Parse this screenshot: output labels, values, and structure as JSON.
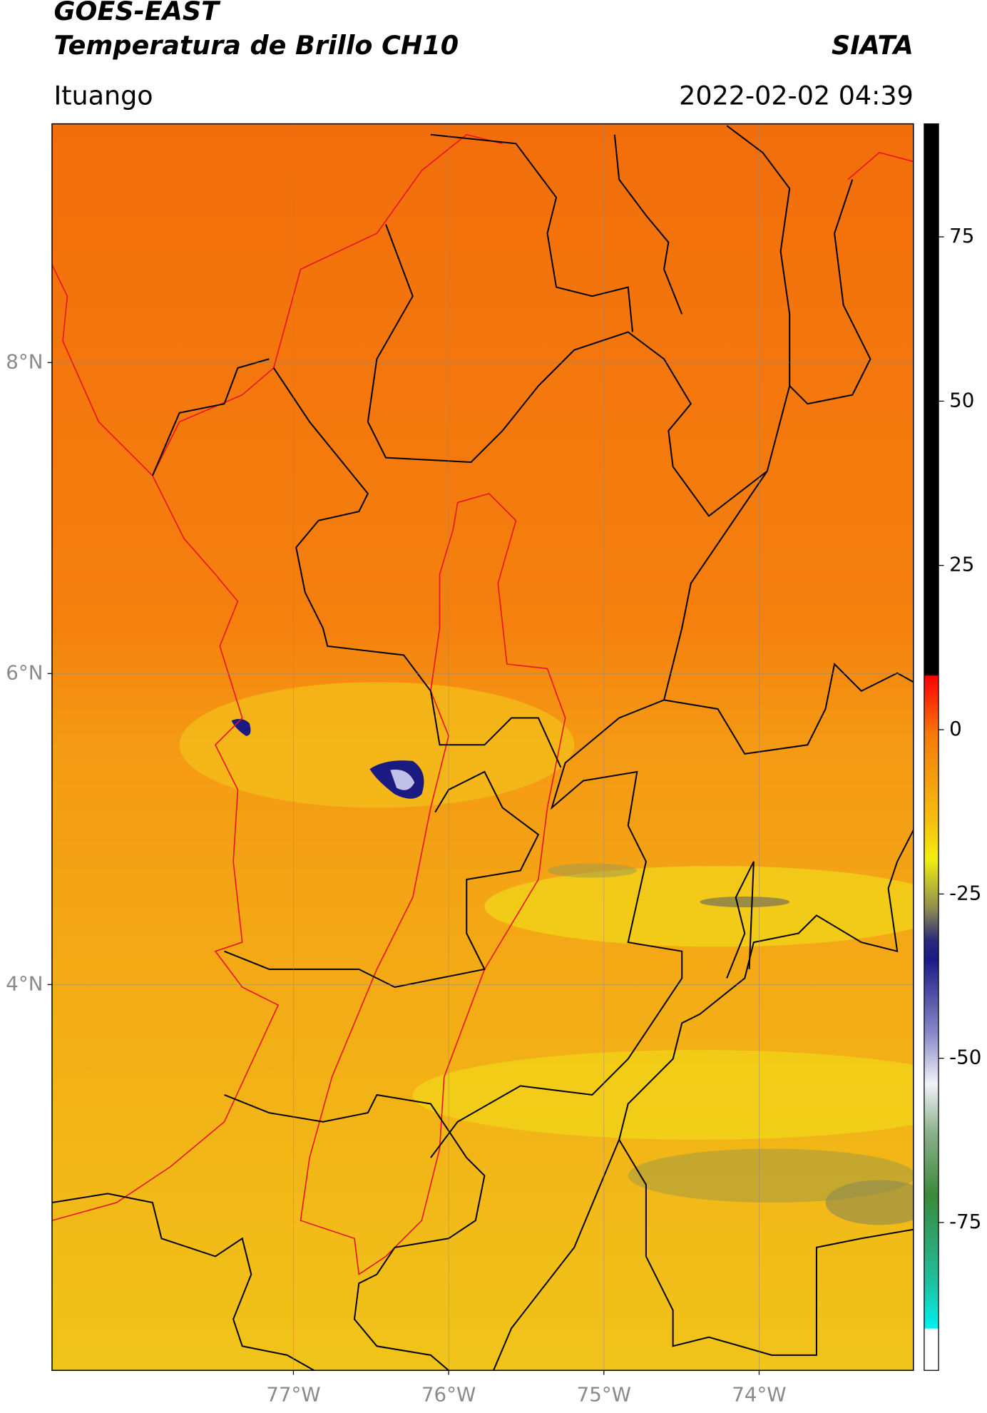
{
  "header": {
    "title": "GOES-EAST",
    "subtitle": "Temperatura de Brillo CH10",
    "source": "SIATA",
    "location": "Ituango",
    "datetime": "2022-02-02 04:39"
  },
  "map": {
    "xlim": [
      -78.555,
      -73.006
    ],
    "ylim": [
      1.519,
      9.535
    ],
    "xticks": [
      {
        "value": -77,
        "label": "77°W"
      },
      {
        "value": -76,
        "label": "76°W"
      },
      {
        "value": -75,
        "label": "75°W"
      },
      {
        "value": -74,
        "label": "74°W"
      }
    ],
    "yticks": [
      {
        "value": 4,
        "label": "4°N"
      },
      {
        "value": 6,
        "label": "6°N"
      },
      {
        "value": 8,
        "label": "8°N"
      }
    ],
    "grid": true
  },
  "colorbar": {
    "ylim": [
      -97.5,
      92.2
    ],
    "yticks": [
      -75,
      -50,
      -25,
      0,
      25,
      50,
      75
    ]
  }
}
